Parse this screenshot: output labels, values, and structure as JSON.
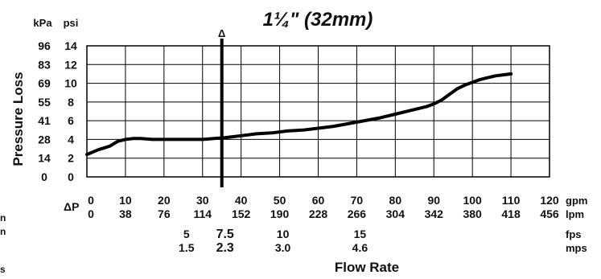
{
  "chart_data": {
    "type": "line",
    "title": "1¼\" (32mm)",
    "xlabel": "Flow Rate",
    "ylabel": "Pressure Loss",
    "grid": true,
    "xlim": [
      0,
      120
    ],
    "ylim": [
      0,
      14
    ],
    "x_ticks_gpm": [
      0,
      10,
      20,
      30,
      40,
      50,
      60,
      70,
      80,
      90,
      100,
      110,
      120
    ],
    "x_ticks_lpm": [
      0,
      38,
      76,
      114,
      152,
      190,
      228,
      266,
      304,
      342,
      380,
      418,
      456
    ],
    "x_unit_gpm": "gpm",
    "x_unit_lpm": "lpm",
    "y_ticks_psi": [
      0,
      2,
      4,
      6,
      8,
      10,
      12,
      14
    ],
    "y_ticks_kpa": [
      0,
      14,
      28,
      41,
      55,
      69,
      83,
      96
    ],
    "y_unit_psi": "psi",
    "y_unit_kpa": "kPa",
    "delta_p_label": "ΔP",
    "marker": {
      "x": 35,
      "label": "Δ"
    },
    "velocity": {
      "fps_label": "fps",
      "mps_label": "mps",
      "entries": [
        {
          "x": 25,
          "fps": "5",
          "mps": "1.5",
          "emphasis": false
        },
        {
          "x": 35,
          "fps": "7.5",
          "mps": "2.3",
          "emphasis": true
        },
        {
          "x": 50,
          "fps": "10",
          "mps": "3.0",
          "emphasis": false
        },
        {
          "x": 70,
          "fps": "15",
          "mps": "4.6",
          "emphasis": false
        }
      ]
    },
    "series": [
      {
        "x": [
          0,
          3,
          6,
          8,
          10,
          12,
          14,
          17,
          20,
          23,
          26,
          28,
          30,
          33,
          36,
          40,
          44,
          48,
          52,
          56,
          60,
          64,
          68,
          72,
          76,
          80,
          84,
          88,
          90,
          92,
          94,
          96,
          98,
          100,
          102,
          104,
          106,
          108,
          110
        ],
        "y": [
          2.4,
          2.9,
          3.3,
          3.8,
          4.0,
          4.1,
          4.1,
          4.0,
          4.0,
          4.0,
          4.0,
          4.0,
          4.0,
          4.1,
          4.2,
          4.4,
          4.6,
          4.7,
          4.9,
          5.0,
          5.2,
          5.4,
          5.7,
          6.0,
          6.3,
          6.7,
          7.1,
          7.5,
          7.8,
          8.2,
          8.8,
          9.4,
          9.8,
          10.1,
          10.4,
          10.6,
          10.8,
          10.9,
          11.0
        ]
      }
    ]
  },
  "cut_off_labels": [
    "n",
    "n",
    "s"
  ]
}
